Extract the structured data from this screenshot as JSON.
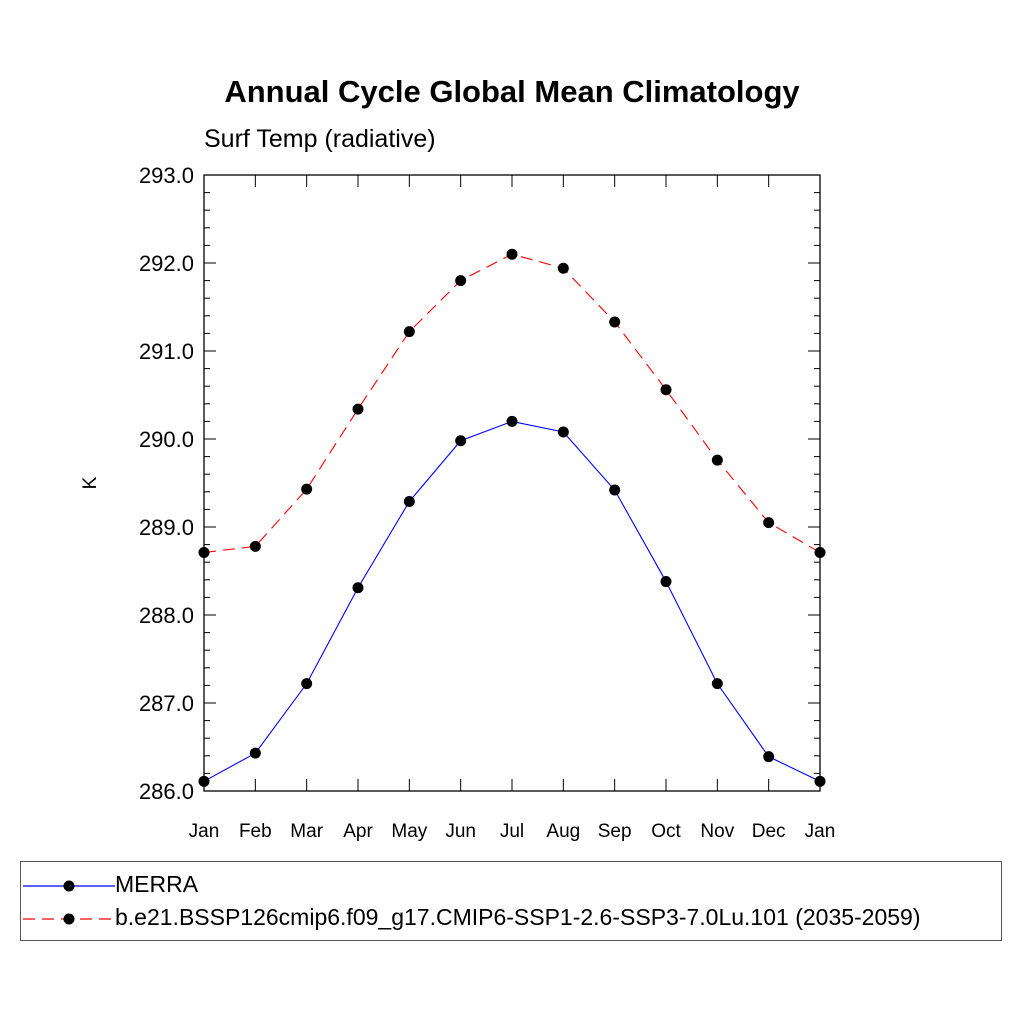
{
  "title": "Annual Cycle Global Mean Climatology",
  "subtitle": "Surf Temp (radiative)",
  "chart_data": {
    "type": "line",
    "title": "Annual Cycle Global Mean Climatology",
    "subtitle": "Surf Temp (radiative)",
    "xlabel": "",
    "ylabel": "K",
    "categories": [
      "Jan",
      "Feb",
      "Mar",
      "Apr",
      "May",
      "Jun",
      "Jul",
      "Aug",
      "Sep",
      "Oct",
      "Nov",
      "Dec",
      "Jan"
    ],
    "ylim": [
      286.0,
      293.0
    ],
    "yticks": [
      "286.0",
      "287.0",
      "288.0",
      "289.0",
      "290.0",
      "291.0",
      "292.0",
      "293.0"
    ],
    "grid": false,
    "legend_position": "bottom",
    "series": [
      {
        "name": "MERRA",
        "color": "#0000ff",
        "line_style": "solid",
        "marker": "filled-circle",
        "values": [
          286.11,
          286.43,
          287.22,
          288.31,
          289.29,
          289.98,
          290.2,
          290.08,
          289.42,
          288.38,
          287.22,
          286.39,
          286.11
        ]
      },
      {
        "name": "b.e21.BSSP126cmip6.f09_g17.CMIP6-SSP1-2.6-SSP3-7.0Lu.101 (2035-2059)",
        "color": "#ff0000",
        "line_style": "dashed",
        "marker": "filled-circle",
        "values": [
          288.71,
          288.78,
          289.43,
          290.34,
          291.22,
          291.8,
          292.1,
          291.94,
          291.33,
          290.56,
          289.76,
          289.05,
          288.71
        ]
      }
    ]
  }
}
